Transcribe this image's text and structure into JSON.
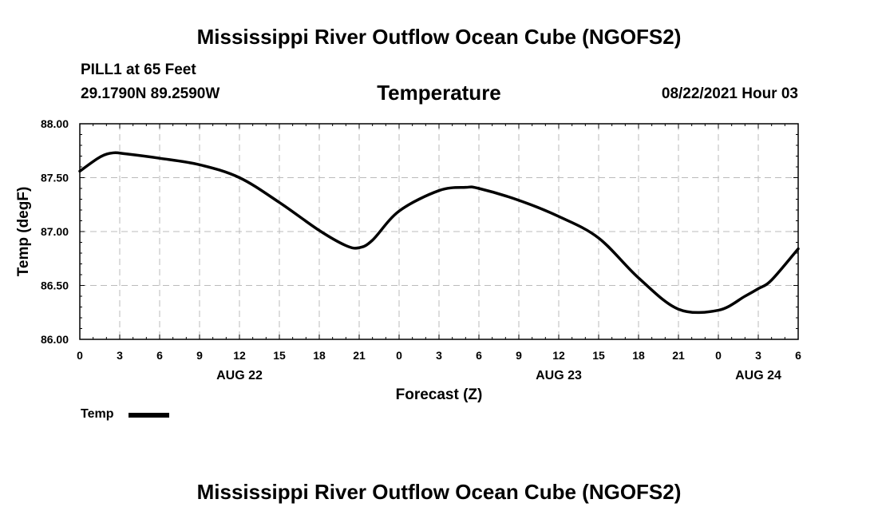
{
  "page": {
    "top_title": "Mississippi River Outflow Ocean Cube (NGOFS2)",
    "bottom_title": "Mississippi River Outflow Ocean Cube (NGOFS2)",
    "station": "PILL1 at 65 Feet",
    "coords": "29.1790N  89.2590W",
    "datetime": "08/22/2021 Hour 03"
  },
  "chart_data": {
    "type": "line",
    "title": "Temperature",
    "xlabel": "Forecast (Z)",
    "ylabel": "Temp (degF)",
    "ylim": [
      86.0,
      88.0
    ],
    "xlim": [
      0,
      54
    ],
    "yticks": [
      "86.00",
      "86.50",
      "87.00",
      "87.50",
      "88.00"
    ],
    "y_tick_values": [
      86.0,
      86.5,
      87.0,
      87.5,
      88.0
    ],
    "x_tick_values": [
      0,
      3,
      6,
      9,
      12,
      15,
      18,
      21,
      24,
      27,
      30,
      33,
      36,
      39,
      42,
      45,
      48,
      51,
      54
    ],
    "xtick_labels": [
      "0",
      "3",
      "6",
      "9",
      "12",
      "15",
      "18",
      "21",
      "0",
      "3",
      "6",
      "9",
      "12",
      "15",
      "18",
      "21",
      "0",
      "3",
      "6"
    ],
    "date_labels": [
      {
        "hour": 12,
        "label": "AUG 22"
      },
      {
        "hour": 36,
        "label": "AUG 23"
      },
      {
        "hour": 51,
        "label": "AUG 24"
      }
    ],
    "grid": true,
    "legend": {
      "position": "bottom-left",
      "label": "Temp"
    },
    "series": [
      {
        "name": "Temp",
        "x": [
          0,
          1.5,
          2.5,
          3.5,
          6,
          9,
          12,
          15,
          18,
          20,
          21,
          22,
          24,
          27,
          29,
          30,
          33,
          36,
          39,
          42,
          45,
          48,
          50,
          51,
          52,
          54
        ],
        "values": [
          87.56,
          87.69,
          87.73,
          87.72,
          87.68,
          87.62,
          87.5,
          87.27,
          87.01,
          86.87,
          86.85,
          86.92,
          87.19,
          87.38,
          87.41,
          87.4,
          87.29,
          87.14,
          86.94,
          86.57,
          86.28,
          86.27,
          86.4,
          86.47,
          86.55,
          86.84
        ]
      }
    ]
  }
}
